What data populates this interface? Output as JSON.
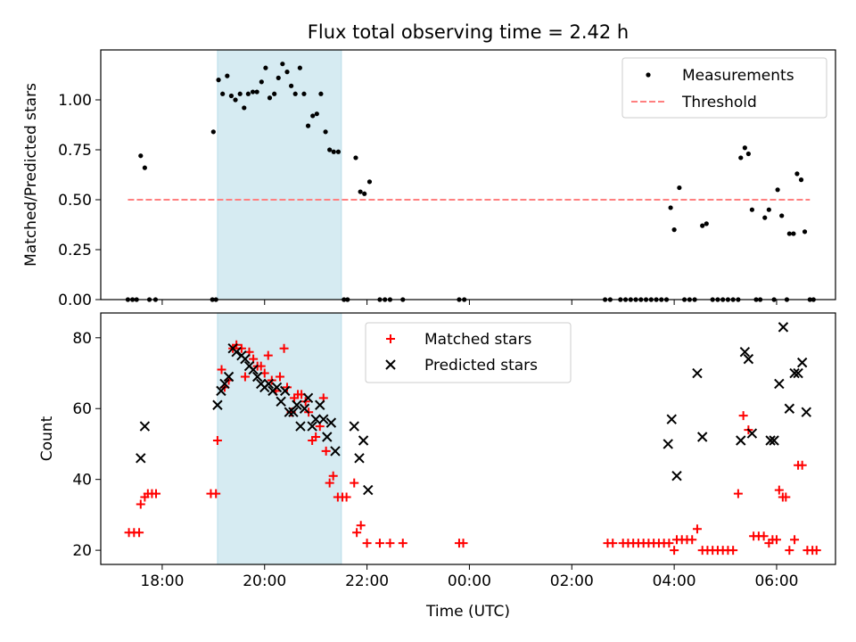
{
  "chart_data": [
    {
      "type": "scatter",
      "title": "Flux total observing time = 2.42 h",
      "xlabel": "",
      "ylabel": "Matched/Predicted stars",
      "xlim": [
        16.8,
        31.15
      ],
      "ylim": [
        0,
        1.25
      ],
      "yticks": [
        0.0,
        0.25,
        0.5,
        0.75,
        1.0
      ],
      "ytick_labels": [
        "0.00",
        "0.25",
        "0.50",
        "0.75",
        "1.00"
      ],
      "xticks": [
        18,
        20,
        22,
        24,
        26,
        28,
        30
      ],
      "shaded_span": [
        19.08,
        21.5
      ],
      "shaded_color": "#add8e6",
      "legend": [
        "Measurements",
        "Threshold"
      ],
      "series": [
        {
          "name": "Measurements",
          "marker": "dot",
          "color": "#000000",
          "points": [
            [
              17.33,
              0
            ],
            [
              17.42,
              0
            ],
            [
              17.5,
              0
            ],
            [
              17.58,
              0.72
            ],
            [
              17.66,
              0.66
            ],
            [
              17.75,
              0
            ],
            [
              17.87,
              0
            ],
            [
              18.98,
              0
            ],
            [
              19.05,
              0
            ],
            [
              19.0,
              0.84
            ],
            [
              19.1,
              1.1
            ],
            [
              19.18,
              1.03
            ],
            [
              19.27,
              1.12
            ],
            [
              19.35,
              1.02
            ],
            [
              19.43,
              1.0
            ],
            [
              19.52,
              1.03
            ],
            [
              19.6,
              0.96
            ],
            [
              19.68,
              1.03
            ],
            [
              19.77,
              1.04
            ],
            [
              19.85,
              1.04
            ],
            [
              19.94,
              1.09
            ],
            [
              20.02,
              1.16
            ],
            [
              20.1,
              1.01
            ],
            [
              20.19,
              1.03
            ],
            [
              20.27,
              1.11
            ],
            [
              20.35,
              1.18
            ],
            [
              20.44,
              1.14
            ],
            [
              20.52,
              1.07
            ],
            [
              20.6,
              1.03
            ],
            [
              20.69,
              1.16
            ],
            [
              20.77,
              1.03
            ],
            [
              20.85,
              0.87
            ],
            [
              20.94,
              0.92
            ],
            [
              21.02,
              0.93
            ],
            [
              21.1,
              1.03
            ],
            [
              21.19,
              0.84
            ],
            [
              21.27,
              0.75
            ],
            [
              21.35,
              0.74
            ],
            [
              21.44,
              0.74
            ],
            [
              21.55,
              0
            ],
            [
              21.62,
              0
            ],
            [
              21.78,
              0.71
            ],
            [
              21.87,
              0.54
            ],
            [
              21.95,
              0.53
            ],
            [
              22.05,
              0.59
            ],
            [
              22.25,
              0
            ],
            [
              22.35,
              0
            ],
            [
              22.45,
              0
            ],
            [
              22.7,
              0
            ],
            [
              23.8,
              0
            ],
            [
              23.9,
              0
            ],
            [
              26.65,
              0
            ],
            [
              26.75,
              0
            ],
            [
              26.95,
              0
            ],
            [
              27.05,
              0
            ],
            [
              27.15,
              0
            ],
            [
              27.25,
              0
            ],
            [
              27.35,
              0
            ],
            [
              27.45,
              0
            ],
            [
              27.55,
              0
            ],
            [
              27.65,
              0
            ],
            [
              27.75,
              0
            ],
            [
              27.85,
              0
            ],
            [
              27.93,
              0.46
            ],
            [
              28.0,
              0.35
            ],
            [
              28.1,
              0.56
            ],
            [
              28.2,
              0
            ],
            [
              28.3,
              0
            ],
            [
              28.4,
              0
            ],
            [
              28.55,
              0.37
            ],
            [
              28.63,
              0.38
            ],
            [
              28.75,
              0
            ],
            [
              28.85,
              0
            ],
            [
              28.95,
              0
            ],
            [
              29.05,
              0
            ],
            [
              29.15,
              0
            ],
            [
              29.25,
              0
            ],
            [
              29.3,
              0.71
            ],
            [
              29.38,
              0.76
            ],
            [
              29.45,
              0.73
            ],
            [
              29.52,
              0.45
            ],
            [
              29.6,
              0
            ],
            [
              29.68,
              0
            ],
            [
              29.77,
              0.41
            ],
            [
              29.85,
              0.45
            ],
            [
              29.95,
              0
            ],
            [
              30.02,
              0.55
            ],
            [
              30.1,
              0.42
            ],
            [
              30.2,
              0
            ],
            [
              30.25,
              0.33
            ],
            [
              30.33,
              0.33
            ],
            [
              30.4,
              0.63
            ],
            [
              30.48,
              0.6
            ],
            [
              30.55,
              0.34
            ],
            [
              30.65,
              0
            ],
            [
              30.72,
              0
            ]
          ]
        },
        {
          "name": "Threshold",
          "style": "dashed",
          "color": "#ff7f7f",
          "points": [
            [
              17.33,
              0.5
            ],
            [
              30.65,
              0.5
            ]
          ]
        }
      ]
    },
    {
      "type": "scatter",
      "title": "",
      "xlabel": "Time (UTC)",
      "ylabel": "Count",
      "xlim": [
        16.8,
        31.15
      ],
      "ylim": [
        16,
        87
      ],
      "yticks": [
        20,
        40,
        60,
        80
      ],
      "ytick_labels": [
        "20",
        "40",
        "60",
        "80"
      ],
      "xticks": [
        18,
        20,
        22,
        24,
        26,
        28,
        30
      ],
      "xtick_labels": [
        "18:00",
        "20:00",
        "22:00",
        "00:00",
        "02:00",
        "04:00",
        "06:00"
      ],
      "shaded_span": [
        19.08,
        21.5
      ],
      "shaded_color": "#add8e6",
      "legend": [
        "Matched stars",
        "Predicted stars"
      ],
      "series": [
        {
          "name": "Matched stars",
          "marker": "plus",
          "color": "#ff0000",
          "points": [
            [
              17.35,
              25
            ],
            [
              17.45,
              25
            ],
            [
              17.55,
              25
            ],
            [
              17.58,
              33
            ],
            [
              17.66,
              35
            ],
            [
              17.72,
              36
            ],
            [
              17.8,
              36
            ],
            [
              17.88,
              36
            ],
            [
              18.95,
              36
            ],
            [
              19.05,
              36
            ],
            [
              19.08,
              51
            ],
            [
              19.16,
              71
            ],
            [
              19.22,
              66
            ],
            [
              19.3,
              68
            ],
            [
              19.38,
              77
            ],
            [
              19.45,
              78
            ],
            [
              19.55,
              77
            ],
            [
              19.62,
              69
            ],
            [
              19.7,
              76
            ],
            [
              19.78,
              74
            ],
            [
              19.86,
              72
            ],
            [
              19.93,
              72
            ],
            [
              20.0,
              70
            ],
            [
              20.07,
              75
            ],
            [
              20.14,
              68
            ],
            [
              20.22,
              65
            ],
            [
              20.3,
              69
            ],
            [
              20.38,
              77
            ],
            [
              20.44,
              66
            ],
            [
              20.52,
              59
            ],
            [
              20.58,
              63
            ],
            [
              20.65,
              64
            ],
            [
              20.72,
              64
            ],
            [
              20.8,
              62
            ],
            [
              20.86,
              59
            ],
            [
              20.93,
              51
            ],
            [
              21.0,
              52
            ],
            [
              21.08,
              55
            ],
            [
              21.15,
              63
            ],
            [
              21.2,
              48
            ],
            [
              21.27,
              39
            ],
            [
              21.34,
              41
            ],
            [
              21.43,
              35
            ],
            [
              21.52,
              35
            ],
            [
              21.6,
              35
            ],
            [
              21.75,
              39
            ],
            [
              21.8,
              25
            ],
            [
              21.88,
              27
            ],
            [
              22.0,
              22
            ],
            [
              22.25,
              22
            ],
            [
              22.45,
              22
            ],
            [
              22.7,
              22
            ],
            [
              23.8,
              22
            ],
            [
              23.88,
              22
            ],
            [
              26.7,
              22
            ],
            [
              26.8,
              22
            ],
            [
              27.0,
              22
            ],
            [
              27.1,
              22
            ],
            [
              27.2,
              22
            ],
            [
              27.3,
              22
            ],
            [
              27.4,
              22
            ],
            [
              27.5,
              22
            ],
            [
              27.6,
              22
            ],
            [
              27.7,
              22
            ],
            [
              27.8,
              22
            ],
            [
              27.9,
              22
            ],
            [
              28.0,
              20
            ],
            [
              28.05,
              23
            ],
            [
              28.15,
              23
            ],
            [
              28.25,
              23
            ],
            [
              28.35,
              23
            ],
            [
              28.45,
              26
            ],
            [
              28.55,
              20
            ],
            [
              28.65,
              20
            ],
            [
              28.75,
              20
            ],
            [
              28.85,
              20
            ],
            [
              28.95,
              20
            ],
            [
              29.05,
              20
            ],
            [
              29.15,
              20
            ],
            [
              29.25,
              36
            ],
            [
              29.35,
              58
            ],
            [
              29.45,
              54
            ],
            [
              29.55,
              24
            ],
            [
              29.65,
              24
            ],
            [
              29.75,
              24
            ],
            [
              29.85,
              22
            ],
            [
              29.92,
              23
            ],
            [
              30.0,
              23
            ],
            [
              30.05,
              37
            ],
            [
              30.12,
              35
            ],
            [
              30.18,
              35
            ],
            [
              30.25,
              20
            ],
            [
              30.35,
              23
            ],
            [
              30.42,
              44
            ],
            [
              30.5,
              44
            ],
            [
              30.6,
              20
            ],
            [
              30.7,
              20
            ],
            [
              30.78,
              20
            ]
          ]
        },
        {
          "name": "Predicted stars",
          "marker": "x",
          "color": "#000000",
          "points": [
            [
              17.58,
              46
            ],
            [
              17.66,
              55
            ],
            [
              19.08,
              61
            ],
            [
              19.15,
              65
            ],
            [
              19.22,
              67
            ],
            [
              19.3,
              69
            ],
            [
              19.38,
              77
            ],
            [
              19.45,
              76
            ],
            [
              19.55,
              75
            ],
            [
              19.62,
              74
            ],
            [
              19.7,
              72
            ],
            [
              19.78,
              71
            ],
            [
              19.86,
              69
            ],
            [
              19.93,
              67
            ],
            [
              20.0,
              66
            ],
            [
              20.08,
              67
            ],
            [
              20.16,
              65
            ],
            [
              20.24,
              66
            ],
            [
              20.32,
              62
            ],
            [
              20.4,
              65
            ],
            [
              20.48,
              59
            ],
            [
              20.56,
              59
            ],
            [
              20.63,
              61
            ],
            [
              20.7,
              55
            ],
            [
              20.78,
              60
            ],
            [
              20.85,
              63
            ],
            [
              20.93,
              55
            ],
            [
              21.0,
              57
            ],
            [
              21.08,
              61
            ],
            [
              21.15,
              57
            ],
            [
              21.22,
              52
            ],
            [
              21.3,
              56
            ],
            [
              21.38,
              48
            ],
            [
              21.75,
              55
            ],
            [
              21.85,
              46
            ],
            [
              21.93,
              51
            ],
            [
              22.02,
              37
            ],
            [
              27.88,
              50
            ],
            [
              27.95,
              57
            ],
            [
              28.05,
              41
            ],
            [
              28.45,
              70
            ],
            [
              28.55,
              52
            ],
            [
              29.3,
              51
            ],
            [
              29.38,
              76
            ],
            [
              29.45,
              74
            ],
            [
              29.52,
              53
            ],
            [
              29.88,
              51
            ],
            [
              29.95,
              51
            ],
            [
              30.05,
              67
            ],
            [
              30.13,
              83
            ],
            [
              30.25,
              60
            ],
            [
              30.35,
              70
            ],
            [
              30.42,
              70
            ],
            [
              30.5,
              73
            ],
            [
              30.58,
              59
            ]
          ]
        }
      ]
    }
  ]
}
